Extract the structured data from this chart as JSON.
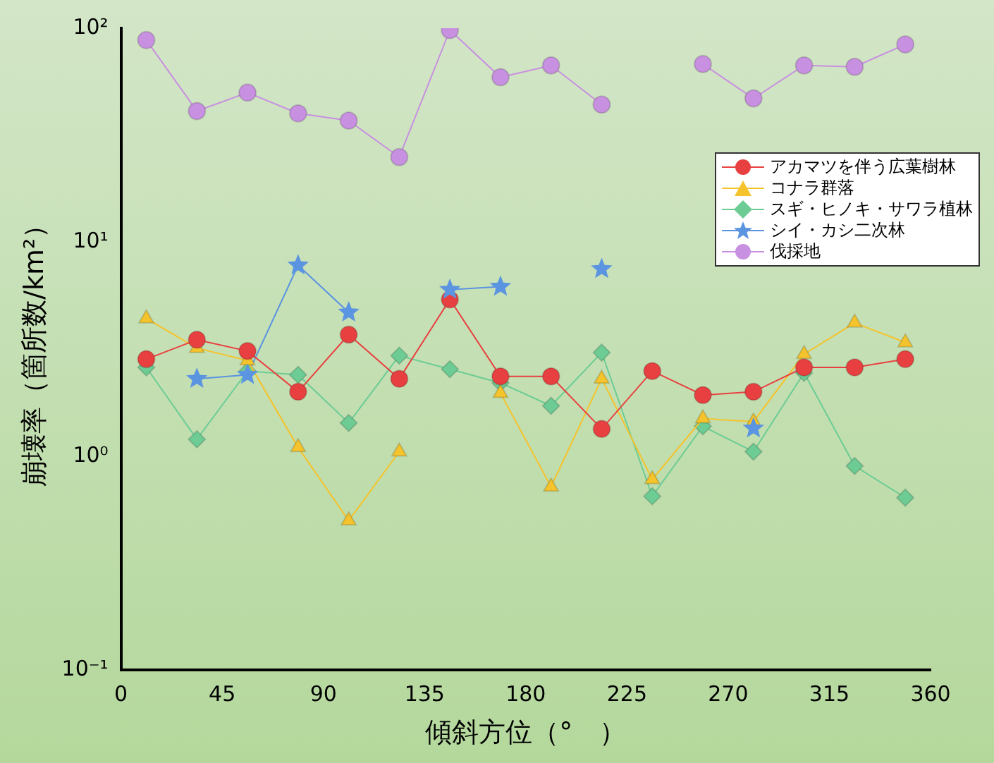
{
  "chart_data": {
    "type": "line",
    "xlabel": "傾斜方位（°　）",
    "ylabel": "崩壊率（箇所数/km²）",
    "x": [
      11.25,
      33.75,
      56.25,
      78.75,
      101.25,
      123.75,
      146.25,
      168.75,
      191.25,
      213.75,
      236.25,
      258.75,
      281.25,
      303.75,
      326.25,
      348.75
    ],
    "xlim": [
      0,
      360
    ],
    "xticks": [
      0,
      45,
      90,
      135,
      180,
      225,
      270,
      315,
      360
    ],
    "log": "y",
    "ylim": [
      0.1,
      100
    ],
    "yticks": [
      {
        "value": 0.1,
        "label": "10⁻¹"
      },
      {
        "value": 1,
        "label": "10⁰"
      },
      {
        "value": 10,
        "label": "10¹"
      },
      {
        "value": 100,
        "label": "10²"
      }
    ],
    "grid": false,
    "legend": "right",
    "series": [
      {
        "name": "アカマツを伴う広葉樹林",
        "color": "#e84040",
        "marker": "circle",
        "values": [
          2.84,
          3.5,
          3.1,
          2.0,
          3.7,
          2.3,
          5.4,
          2.36,
          2.36,
          1.34,
          2.5,
          1.93,
          2.0,
          2.6,
          2.6,
          2.84
        ]
      },
      {
        "name": "コナラ群落",
        "color": "#f5c32c",
        "marker": "triangle",
        "values": [
          4.4,
          3.2,
          2.8,
          1.1,
          0.5,
          1.05,
          null,
          1.97,
          0.72,
          2.3,
          0.78,
          1.5,
          1.45,
          3.0,
          4.2,
          3.4
        ]
      },
      {
        "name": "スギ・ヒノキ・サワラ植林",
        "color": "#6ccc94",
        "marker": "diamond",
        "values": [
          2.6,
          1.2,
          2.5,
          2.4,
          1.43,
          2.95,
          2.55,
          2.2,
          1.72,
          3.05,
          0.65,
          1.38,
          1.05,
          2.45,
          0.9,
          0.64
        ]
      },
      {
        "name": "シイ・カシ二次林",
        "color": "#5b94e0",
        "marker": "star",
        "values": [
          null,
          2.3,
          2.4,
          7.8,
          4.7,
          null,
          6.0,
          6.2,
          null,
          7.5,
          null,
          null,
          1.35,
          null,
          null,
          null
        ]
      },
      {
        "name": "伐採地",
        "color": "#c890e0",
        "marker": "circle",
        "values": [
          88,
          41,
          50,
          40,
          37,
          25,
          98,
          59,
          67,
          44,
          null,
          68,
          47,
          67,
          66,
          84
        ]
      }
    ]
  }
}
